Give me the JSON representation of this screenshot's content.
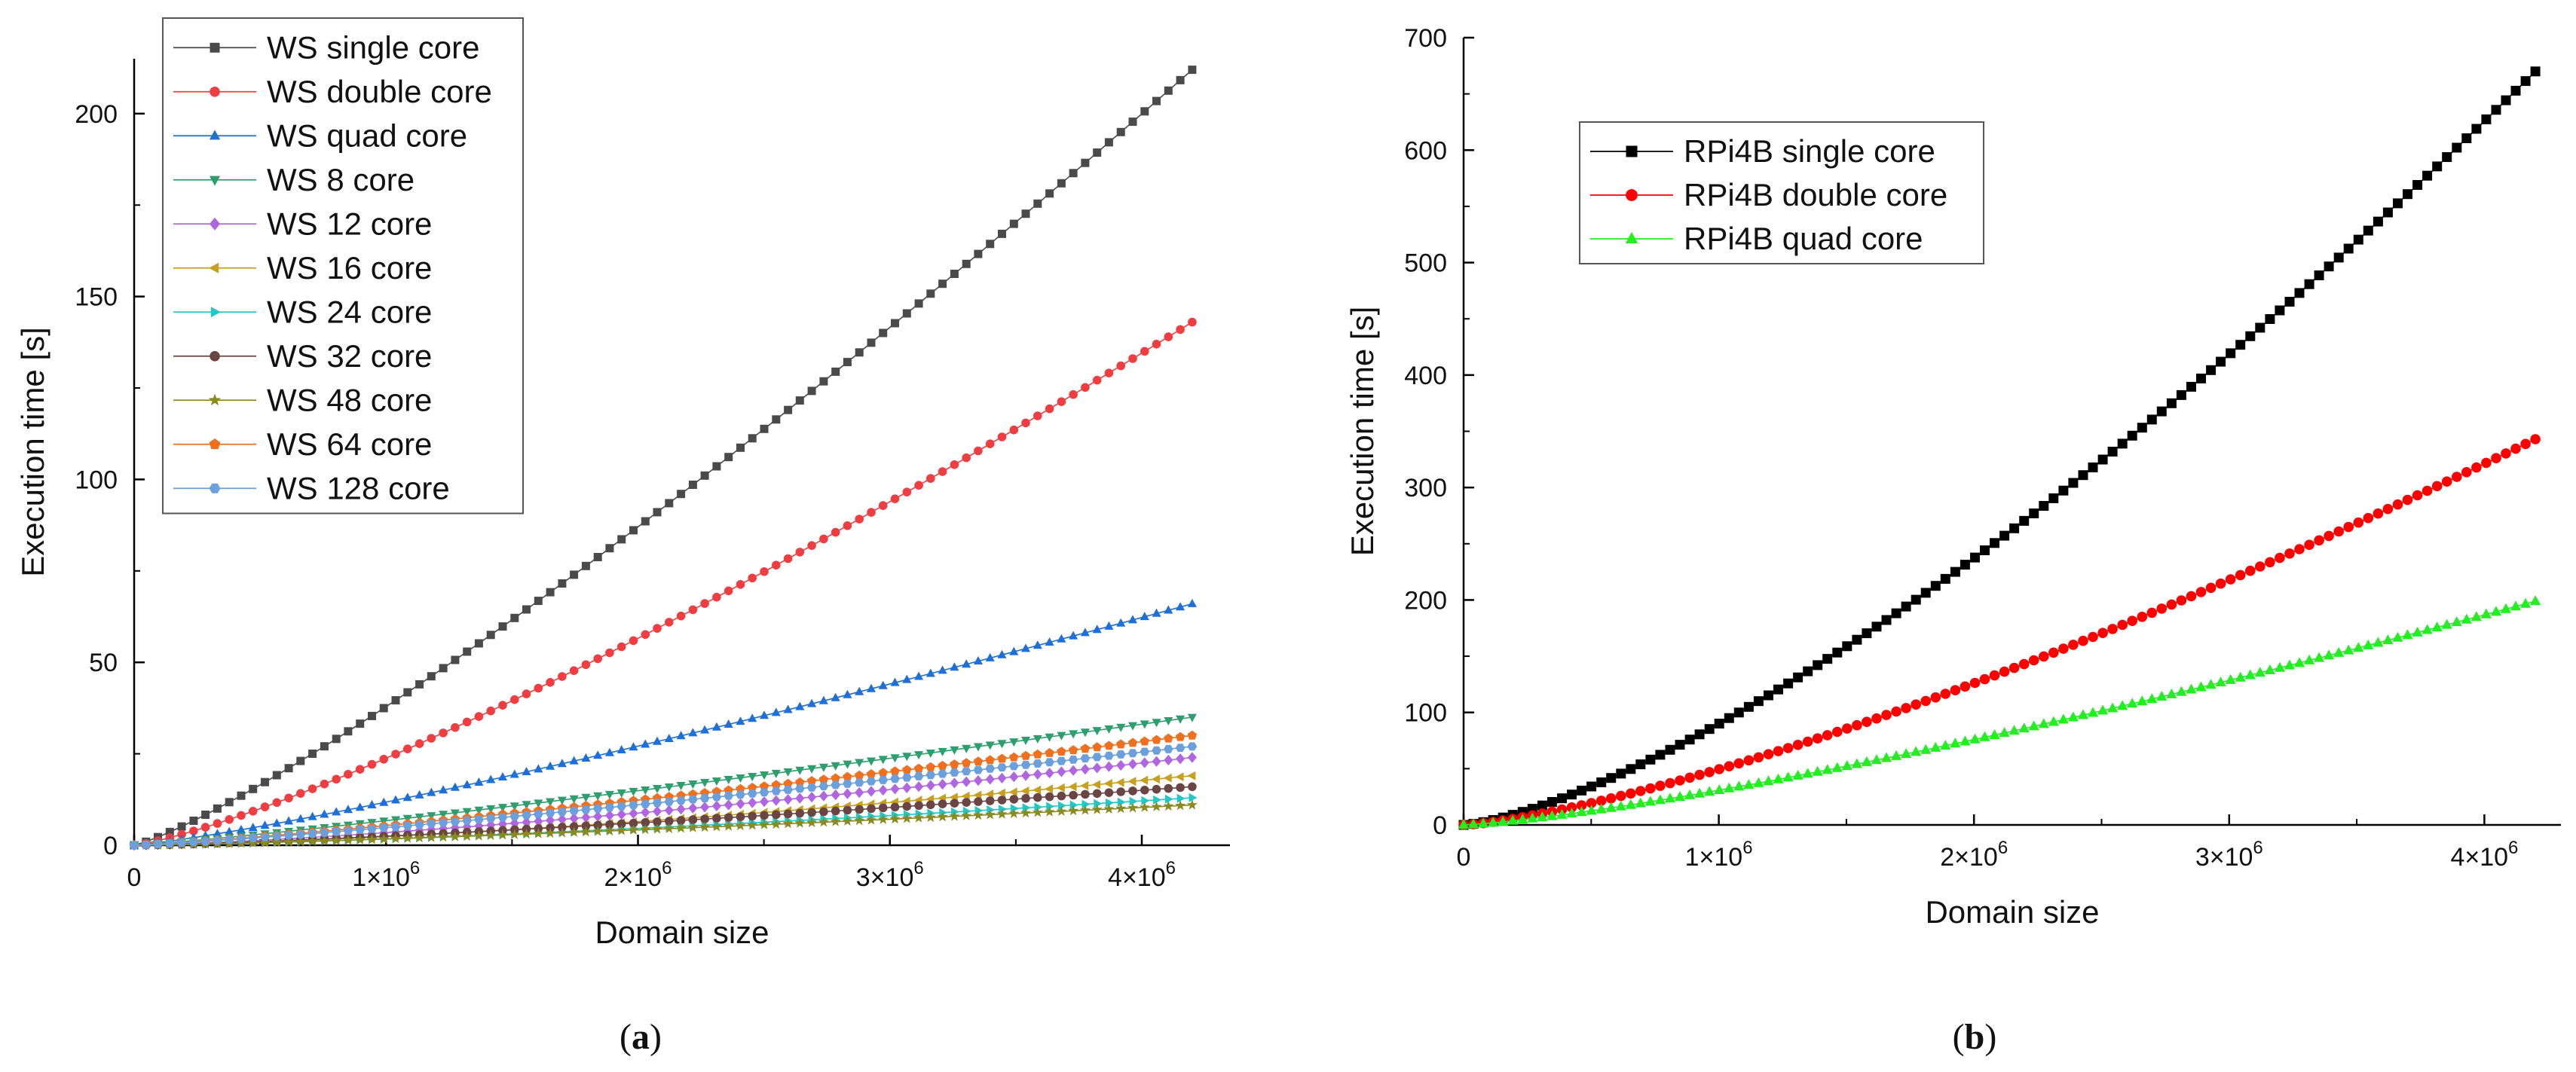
{
  "chart_data": [
    {
      "type": "line",
      "caption_open": "(",
      "caption_letter": "a",
      "caption_close": ")",
      "xlabel": "Domain size",
      "ylabel": "Execution time [s]",
      "xlim": [
        0,
        4350000
      ],
      "ylim": [
        0,
        215
      ],
      "x_ticks": [
        {
          "value": 0,
          "base": "0",
          "exp": ""
        },
        {
          "value": 1000000,
          "base": "1×10",
          "exp": "6"
        },
        {
          "value": 2000000,
          "base": "2×10",
          "exp": "6"
        },
        {
          "value": 3000000,
          "base": "3×10",
          "exp": "6"
        },
        {
          "value": 4000000,
          "base": "4×10",
          "exp": "6"
        }
      ],
      "y_ticks": [
        0,
        50,
        100,
        150,
        200
      ],
      "legend_position": "top-left",
      "series": [
        {
          "name": "WS single core",
          "color": "#4a4a4a",
          "marker": "square",
          "final": 212,
          "exponent": 1.2
        },
        {
          "name": "WS double core",
          "color": "#ef3e42",
          "marker": "circle",
          "final": 143,
          "exponent": 1.25
        },
        {
          "name": "WS quad core",
          "color": "#1e6fd9",
          "marker": "triangle-up",
          "final": 66,
          "exponent": 1.2
        },
        {
          "name": "WS 8 core",
          "color": "#2e9e6e",
          "marker": "triangle-down",
          "final": 35,
          "exponent": 1.15
        },
        {
          "name": "WS 12 core",
          "color": "#b066e0",
          "marker": "diamond",
          "final": 24,
          "exponent": 1.35
        },
        {
          "name": "WS 16 core",
          "color": "#c8a020",
          "marker": "triangle-left",
          "final": 19,
          "exponent": 1.45
        },
        {
          "name": "WS 24 core",
          "color": "#20c8c8",
          "marker": "triangle-right",
          "final": 13,
          "exponent": 1.4
        },
        {
          "name": "WS 32 core",
          "color": "#6b4444",
          "marker": "circle",
          "final": 16,
          "exponent": 1.3
        },
        {
          "name": "WS 48 core",
          "color": "#8a8a20",
          "marker": "star",
          "final": 11,
          "exponent": 1.3
        },
        {
          "name": "WS 64 core",
          "color": "#f07020",
          "marker": "pentagon",
          "final": 30,
          "exponent": 1.2
        },
        {
          "name": "WS 128 core",
          "color": "#6ca0dc",
          "marker": "hexagon",
          "final": 27,
          "exponent": 1.2
        }
      ]
    },
    {
      "type": "line",
      "caption_open": "(",
      "caption_letter": "b",
      "caption_close": ")",
      "xlabel": "Domain size",
      "ylabel": "Execution time [s]",
      "xlim": [
        0,
        4300000
      ],
      "ylim": [
        0,
        700
      ],
      "x_ticks": [
        {
          "value": 0,
          "base": "0",
          "exp": ""
        },
        {
          "value": 1000000,
          "base": "1×10",
          "exp": "6"
        },
        {
          "value": 2000000,
          "base": "2×10",
          "exp": "6"
        },
        {
          "value": 3000000,
          "base": "3×10",
          "exp": "6"
        },
        {
          "value": 4000000,
          "base": "4×10",
          "exp": "6"
        }
      ],
      "y_ticks": [
        0,
        100,
        200,
        300,
        400,
        500,
        600,
        700
      ],
      "legend_position": "top-left",
      "series": [
        {
          "name": "RPi4B single core",
          "color": "#000000",
          "marker": "square",
          "final": 670,
          "exponent": 1.4
        },
        {
          "name": "RPi4B double core",
          "color": "#ff0000",
          "marker": "circle",
          "final": 343,
          "exponent": 1.35
        },
        {
          "name": "RPi4B quad core",
          "color": "#22ee22",
          "marker": "triangle-up",
          "final": 199,
          "exponent": 1.3
        }
      ]
    }
  ]
}
